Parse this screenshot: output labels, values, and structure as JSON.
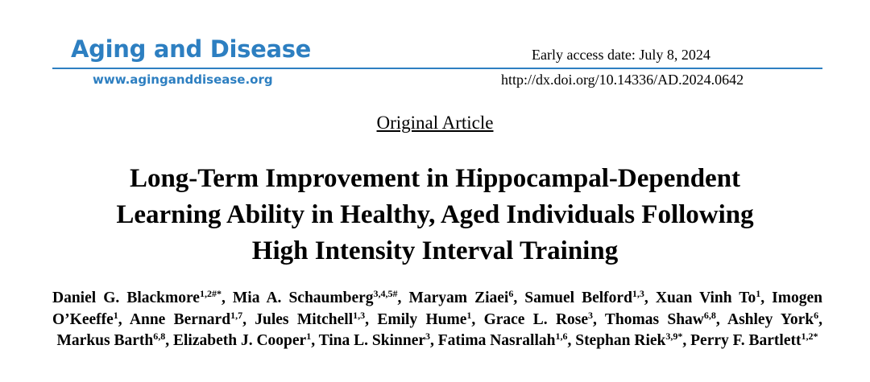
{
  "header": {
    "journal": "Aging and Disease",
    "website": "www.aginganddisease.org",
    "access_date": "Early access date: July 8, 2024",
    "doi": "http://dx.doi.org/10.14336/AD.2024.0642"
  },
  "article_type": "Original Article",
  "title_lines": [
    "Long-Term Improvement in Hippocampal-Dependent",
    "Learning Ability in Healthy, Aged Individuals Following",
    "High Intensity Interval Training"
  ],
  "authors": {
    "separator": ", ",
    "list": [
      {
        "name": "Daniel G. Blackmore",
        "sup": "1,2#*"
      },
      {
        "name": "Mia A. Schaumberg",
        "sup": "3,4,5#"
      },
      {
        "name": "Maryam Ziaei",
        "sup": "6"
      },
      {
        "name": "Samuel Belford",
        "sup": "1,3"
      },
      {
        "name": "Xuan Vinh To",
        "sup": "1"
      },
      {
        "name": "Imogen O’Keeffe",
        "sup": "1"
      },
      {
        "name": "Anne Bernard",
        "sup": "1,7"
      },
      {
        "name": "Jules Mitchell",
        "sup": "1,3"
      },
      {
        "name": "Emily Hume",
        "sup": "1"
      },
      {
        "name": "Grace L. Rose",
        "sup": "3"
      },
      {
        "name": "Thomas Shaw",
        "sup": "6,8"
      },
      {
        "name": "Ashley York",
        "sup": "6"
      },
      {
        "name": "Markus Barth",
        "sup": "6,8"
      },
      {
        "name": "Elizabeth J. Cooper",
        "sup": "1"
      },
      {
        "name": "Tina L. Skinner",
        "sup": "3"
      },
      {
        "name": "Fatima Nasrallah",
        "sup": "1,6"
      },
      {
        "name": "Stephan Riek",
        "sup": "3,9*"
      },
      {
        "name": "Perry F. Bartlett",
        "sup": "1,2*"
      }
    ]
  }
}
